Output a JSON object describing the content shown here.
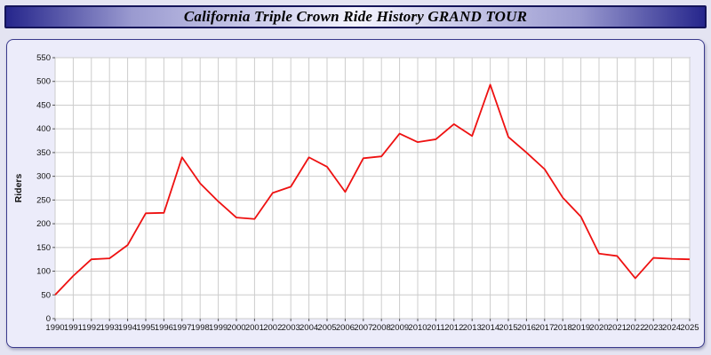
{
  "header": {
    "title": "California Triple Crown Ride History GRAND TOUR"
  },
  "chart_data": {
    "type": "line",
    "title": "California Triple Crown Ride History GRAND TOUR",
    "xlabel": "",
    "ylabel": "Riders",
    "x": [
      1990,
      1991,
      1992,
      1993,
      1994,
      1995,
      1996,
      1997,
      1998,
      1999,
      2000,
      2001,
      2002,
      2003,
      2004,
      2005,
      2006,
      2007,
      2008,
      2009,
      2010,
      2011,
      2012,
      2013,
      2014,
      2015,
      2016,
      2017,
      2018,
      2019,
      2020,
      2021,
      2022,
      2023,
      2024,
      2025
    ],
    "series": [
      {
        "name": "Riders",
        "values": [
          50,
          90,
          125,
          127,
          155,
          222,
          223,
          340,
          285,
          247,
          213,
          210,
          265,
          278,
          340,
          320,
          267,
          338,
          342,
          390,
          372,
          378,
          410,
          385,
          493,
          383,
          350,
          315,
          255,
          215,
          137,
          132,
          85,
          128,
          126,
          125
        ]
      }
    ],
    "ylim": [
      0,
      550
    ],
    "ytick_step": 50,
    "grid": true,
    "legend": "none",
    "line_color": "#ee1111",
    "plot_bg": "#ffffff",
    "grid_color": "#cccccc"
  }
}
